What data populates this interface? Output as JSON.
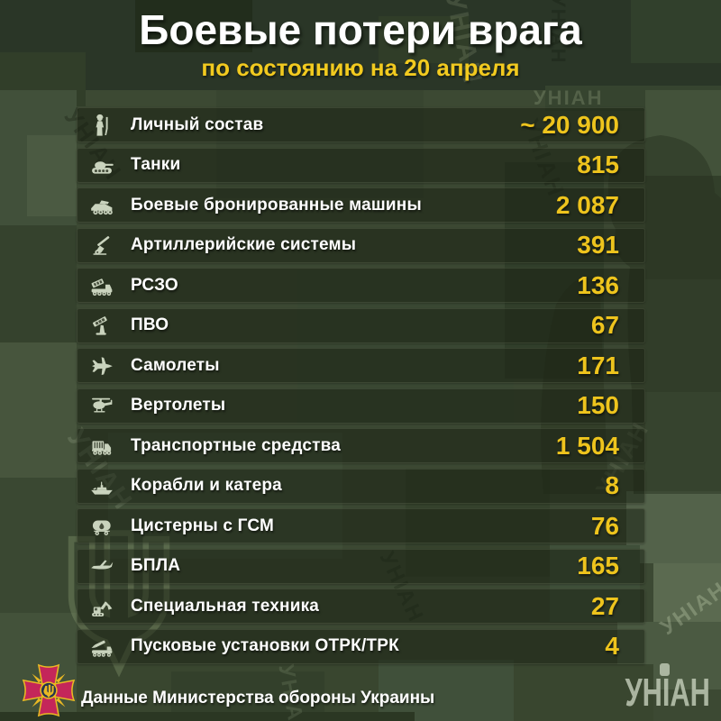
{
  "header": {
    "title": "Боевые потери врага",
    "subtitle": "по состоянию на 20 апреля"
  },
  "rows": [
    {
      "icon": "soldier-icon",
      "label": "Личный состав",
      "value": "~ 20 900"
    },
    {
      "icon": "tank-icon",
      "label": "Танки",
      "value": "815"
    },
    {
      "icon": "apc-icon",
      "label": "Боевые бронированные машины",
      "value": "2 087"
    },
    {
      "icon": "artillery-icon",
      "label": "Артиллерийские системы",
      "value": "391"
    },
    {
      "icon": "mlrs-icon",
      "label": "РСЗО",
      "value": "136"
    },
    {
      "icon": "air-defense-icon",
      "label": "ПВО",
      "value": "67"
    },
    {
      "icon": "jet-icon",
      "label": "Самолеты",
      "value": "171"
    },
    {
      "icon": "helicopter-icon",
      "label": "Вертолеты",
      "value": "150"
    },
    {
      "icon": "truck-icon",
      "label": "Транспортные средства",
      "value": "1 504"
    },
    {
      "icon": "ship-icon",
      "label": "Корабли и катера",
      "value": "8"
    },
    {
      "icon": "fuel-tank-icon",
      "label": "Цистерны с ГСМ",
      "value": "76"
    },
    {
      "icon": "drone-icon",
      "label": "БПЛА",
      "value": "165"
    },
    {
      "icon": "excavator-icon",
      "label": "Специальная техника",
      "value": "27"
    },
    {
      "icon": "missile-launcher-icon",
      "label": "Пусковые установки ОТРК/ТРК",
      "value": "4"
    }
  ],
  "footer": {
    "source": "Данные Министерства обороны Украины",
    "brand": "УНІАН"
  },
  "watermark": "УНІАН",
  "colors": {
    "accent_yellow": "#eec41d",
    "background_green": "#3c4933",
    "row_green": "rgba(21,29,15,0.5)",
    "emblem_crimson": "#c4265a",
    "emblem_gold": "#e9b823"
  },
  "chart_data": {
    "type": "table",
    "title": "Боевые потери врага",
    "subtitle": "по состоянию на 20 апреля",
    "categories": [
      "Личный состав",
      "Танки",
      "Боевые бронированные машины",
      "Артиллерийские системы",
      "РСЗО",
      "ПВО",
      "Самолеты",
      "Вертолеты",
      "Транспортные средства",
      "Корабли и катера",
      "Цистерны с ГСМ",
      "БПЛА",
      "Специальная техника",
      "Пусковые установки ОТРК/ТРК"
    ],
    "values": [
      "~ 20 900",
      "815",
      "2 087",
      "391",
      "136",
      "67",
      "171",
      "150",
      "1 504",
      "8",
      "76",
      "165",
      "27",
      "4"
    ],
    "values_numeric": [
      20900,
      815,
      2087,
      391,
      136,
      67,
      171,
      150,
      1504,
      8,
      76,
      165,
      27,
      4
    ],
    "source": "Данные Министерства обороны Украины"
  }
}
